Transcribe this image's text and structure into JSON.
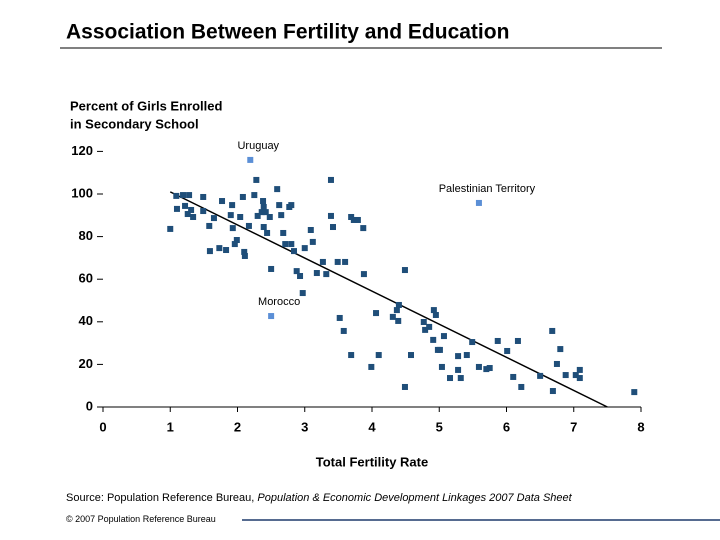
{
  "chart_data": {
    "type": "scatter",
    "title": "Association Between Fertility and Education",
    "ylabel": [
      "Percent of Girls Enrolled",
      "in Secondary School"
    ],
    "xlabel": "Total Fertility Rate",
    "xlim": [
      0,
      8
    ],
    "xticks": [
      0,
      1,
      2,
      3,
      4,
      5,
      6,
      7,
      8
    ],
    "ylim": [
      0,
      120
    ],
    "yticks": [
      0,
      20,
      40,
      60,
      80,
      100,
      120
    ],
    "series": [
      {
        "color": "#1f4e79",
        "x": [
          1.0,
          1.09,
          1.19,
          1.28,
          1.31,
          1.1,
          1.22,
          1.26,
          1.34,
          1.49,
          1.49,
          1.58,
          1.59,
          1.65,
          1.73,
          1.77,
          1.83,
          1.9,
          1.92,
          1.93,
          1.99,
          1.96,
          2.04,
          2.08,
          2.1,
          2.11,
          2.17,
          2.25,
          2.28,
          2.3,
          2.36,
          2.38,
          2.39,
          2.39,
          2.44,
          2.42,
          2.48,
          2.5,
          2.59,
          2.62,
          2.65,
          2.68,
          2.71,
          2.77,
          2.8,
          2.8,
          2.84,
          2.88,
          2.93,
          2.97,
          3.0,
          3.09,
          3.12,
          3.18,
          3.27,
          3.32,
          3.39,
          3.39,
          3.42,
          3.49,
          3.52,
          3.58,
          3.6,
          3.69,
          3.73,
          3.69,
          3.79,
          3.87,
          3.88,
          3.99,
          4.06,
          4.1,
          4.31,
          4.37,
          4.39,
          4.4,
          4.49,
          4.49,
          4.58,
          4.77,
          4.79,
          4.85,
          4.91,
          4.92,
          4.95,
          4.98,
          5.01,
          5.04,
          5.07,
          5.16,
          5.28,
          5.28,
          5.32,
          5.41,
          5.49,
          5.59,
          5.7,
          5.75,
          5.87,
          6.01,
          6.1,
          6.17,
          6.22,
          6.5,
          6.68,
          6.69,
          6.75,
          6.8,
          6.88,
          7.03,
          7.09,
          7.09,
          7.9
        ],
        "values": [
          83.6,
          99.1,
          99.5,
          99.5,
          92.5,
          93.0,
          94.4,
          90.6,
          89.2,
          98.6,
          92.0,
          85.0,
          73.2,
          88.7,
          74.6,
          96.7,
          73.7,
          90.1,
          94.8,
          84.0,
          78.4,
          76.5,
          89.2,
          98.6,
          72.8,
          70.9,
          85.0,
          99.5,
          106.6,
          89.7,
          91.5,
          96.7,
          93.9,
          84.5,
          81.7,
          91.5,
          89.2,
          64.8,
          102.3,
          94.8,
          90.1,
          81.7,
          76.5,
          93.9,
          94.8,
          76.5,
          73.2,
          63.8,
          61.5,
          53.5,
          74.6,
          83.1,
          77.5,
          62.9,
          68.1,
          62.4,
          106.6,
          89.7,
          84.5,
          68.1,
          41.8,
          35.7,
          68.1,
          89.2,
          87.8,
          24.4,
          87.8,
          84.0,
          62.4,
          18.8,
          44.1,
          24.4,
          42.3,
          45.5,
          40.4,
          47.9,
          64.3,
          9.4,
          24.4,
          39.9,
          36.2,
          37.6,
          31.5,
          45.5,
          43.2,
          26.8,
          26.8,
          18.8,
          33.3,
          13.6,
          17.4,
          23.9,
          13.6,
          24.4,
          30.5,
          18.8,
          17.8,
          18.3,
          31.0,
          26.3,
          14.1,
          31.0,
          9.4,
          14.6,
          35.7,
          7.5,
          20.2,
          27.2,
          15.0,
          15.0,
          17.4,
          13.6,
          7.0
        ]
      }
    ],
    "highlights": [
      {
        "label": "Uruguay",
        "x": 2.19,
        "y": 116,
        "color": "#5b8fd6"
      },
      {
        "label": "Palestinian Territory",
        "x": 5.59,
        "y": 95.8,
        "color": "#5b8fd6"
      },
      {
        "label": "Morocco",
        "x": 2.5,
        "y": 42.7,
        "color": "#5b8fd6"
      }
    ],
    "trendline": {
      "x": [
        1,
        7.5
      ],
      "values": [
        101,
        0
      ],
      "color": "#000000"
    }
  },
  "source": {
    "text": "Source: Population Reference Bureau,",
    "title": "Population & Economic Development Linkages 2007 Data Sheet"
  },
  "footer": "© 2007 Population Reference Bureau"
}
